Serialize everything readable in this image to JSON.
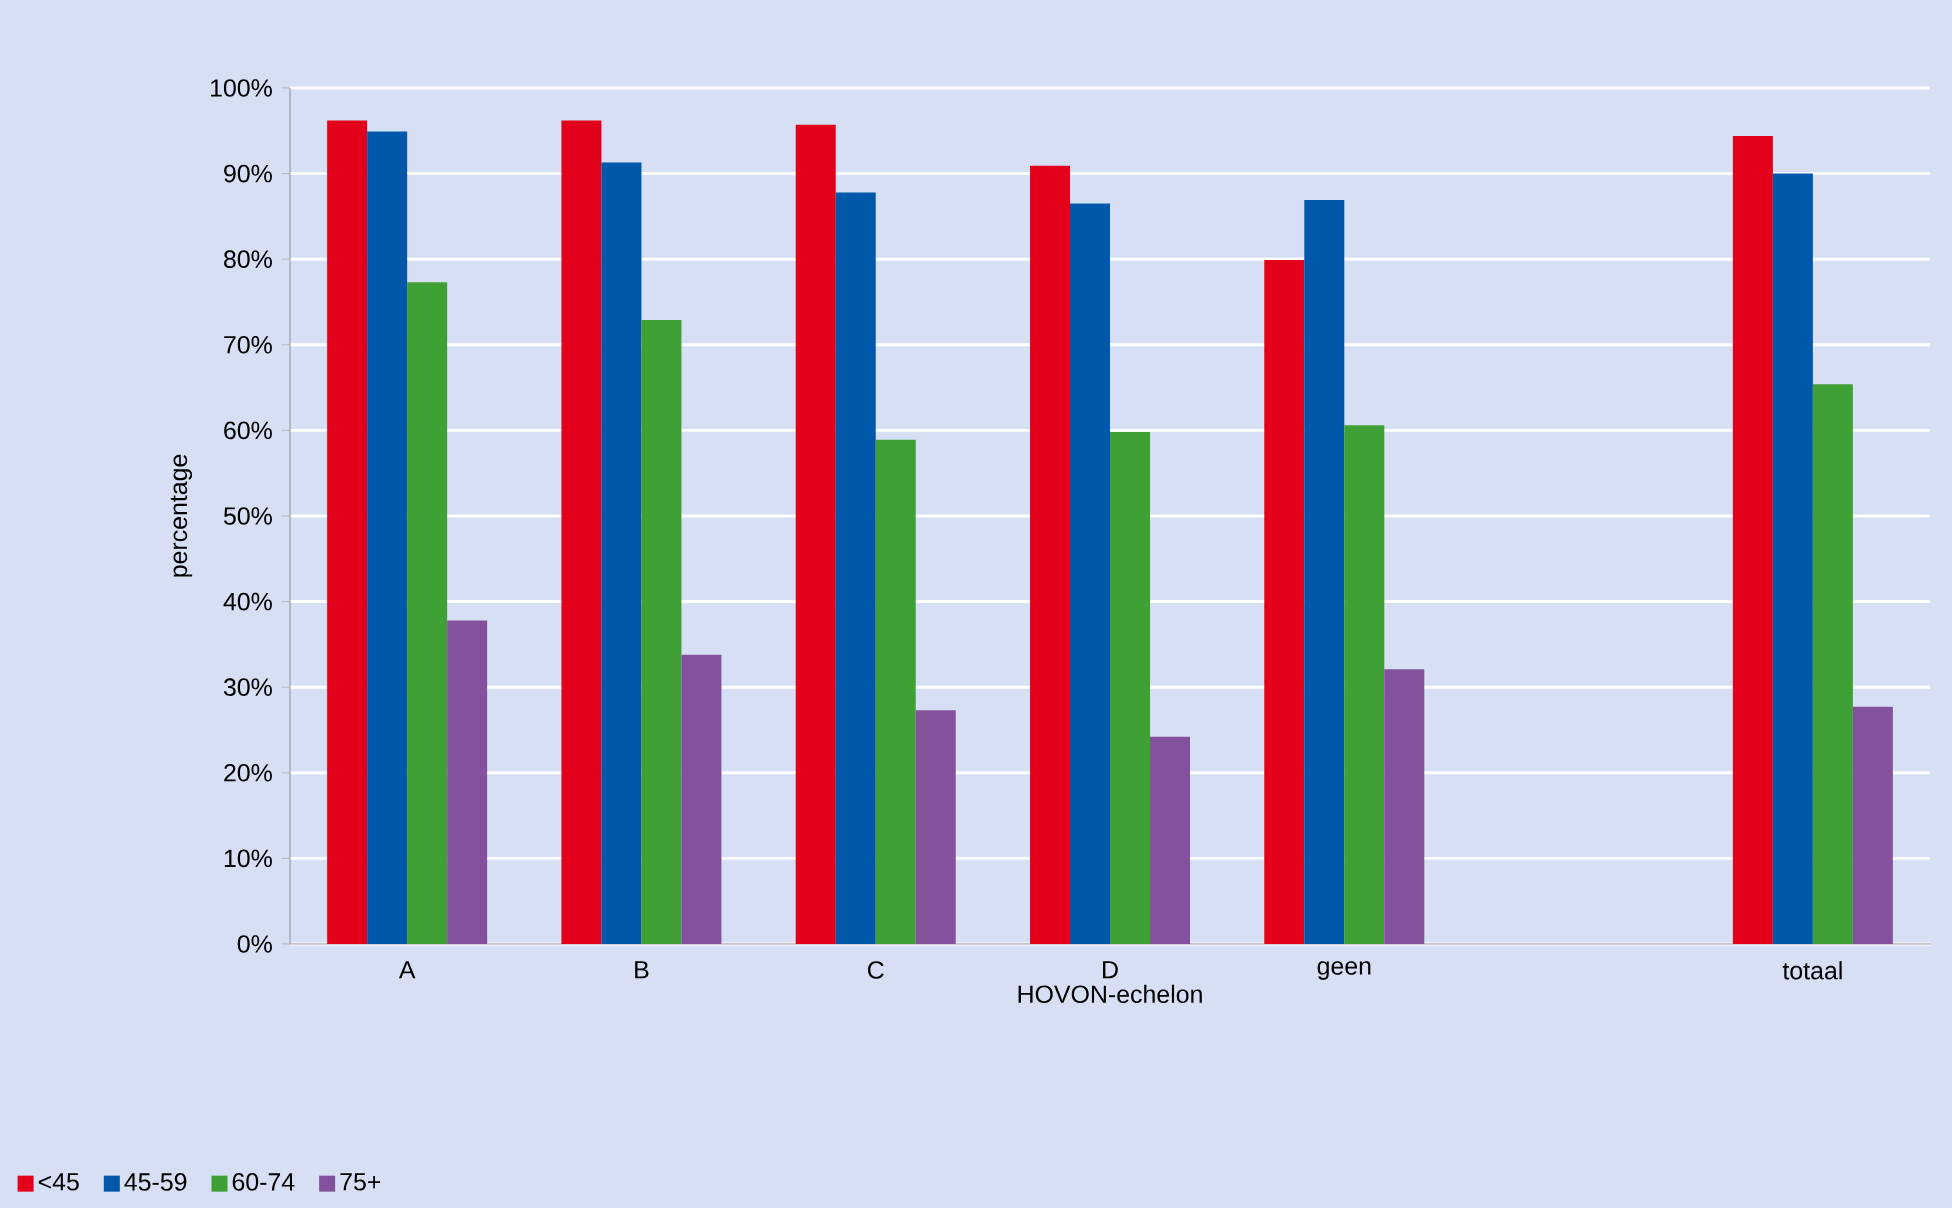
{
  "chart_data": {
    "type": "bar",
    "xlabel": "HOVON-echelon",
    "ylabel": "percentage",
    "categories": [
      "A",
      "B",
      "C",
      "D",
      "geen",
      null,
      "totaal"
    ],
    "series": [
      {
        "name": "<45",
        "color": "#e2001a",
        "values": [
          96.2,
          96.2,
          95.7,
          90.9,
          79.9,
          null,
          94.4
        ]
      },
      {
        "name": "45-59",
        "color": "#0058aa",
        "values": [
          94.9,
          91.3,
          87.8,
          86.5,
          86.9,
          null,
          90.0
        ]
      },
      {
        "name": "60-74",
        "color": "#3fa035",
        "values": [
          77.3,
          72.9,
          58.9,
          59.8,
          60.6,
          null,
          65.4
        ]
      },
      {
        "name": "75+",
        "color": "#84519c",
        "values": [
          37.8,
          33.8,
          27.3,
          24.2,
          32.1,
          null,
          27.7
        ]
      }
    ],
    "ylim": [
      0,
      100
    ],
    "yticks": [
      {
        "value": 0,
        "label": "0%"
      },
      {
        "value": 10,
        "label": "10%"
      },
      {
        "value": 20,
        "label": "20%"
      },
      {
        "value": 30,
        "label": "30%"
      },
      {
        "value": 40,
        "label": "40%"
      },
      {
        "value": 50,
        "label": "50%"
      },
      {
        "value": 60,
        "label": "60%"
      },
      {
        "value": 70,
        "label": "70%"
      },
      {
        "value": 80,
        "label": "80%"
      },
      {
        "value": 90,
        "label": "90%"
      },
      {
        "value": 100,
        "label": "100%"
      }
    ],
    "grid": "y",
    "legend": "bottom left"
  }
}
